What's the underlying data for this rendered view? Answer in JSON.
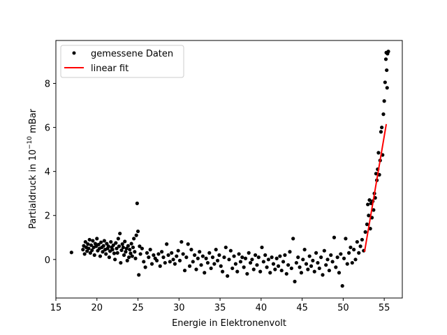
{
  "chart_data": {
    "type": "scatter",
    "title": "",
    "xlabel": "Energie in Elektronenvolt",
    "ylabel_prefix": "Partialdruck in 10",
    "ylabel_exponent": "−10",
    "ylabel_suffix": " mBar",
    "xlim": [
      15,
      57.2
    ],
    "ylim": [
      -1.75,
      9.95
    ],
    "x_ticks": [
      15,
      20,
      25,
      30,
      35,
      40,
      45,
      50,
      55
    ],
    "y_ticks": [
      0,
      2,
      4,
      6,
      8
    ],
    "grid": false,
    "legend_position": "top-left",
    "series": [
      {
        "name": "gemessene Daten",
        "kind": "scatter",
        "color": "#000000",
        "points": [
          [
            16.9,
            0.32
          ],
          [
            18.3,
            0.45
          ],
          [
            18.4,
            0.62
          ],
          [
            18.5,
            0.25
          ],
          [
            18.6,
            0.8
          ],
          [
            18.7,
            0.55
          ],
          [
            18.8,
            0.38
          ],
          [
            18.9,
            0.7
          ],
          [
            19.0,
            0.5
          ],
          [
            19.1,
            0.9
          ],
          [
            19.2,
            0.3
          ],
          [
            19.3,
            0.65
          ],
          [
            19.4,
            0.42
          ],
          [
            19.5,
            0.85
          ],
          [
            19.6,
            0.55
          ],
          [
            19.7,
            0.2
          ],
          [
            19.8,
            0.72
          ],
          [
            19.9,
            0.6
          ],
          [
            20.0,
            0.95
          ],
          [
            20.1,
            0.4
          ],
          [
            20.2,
            0.68
          ],
          [
            20.3,
            0.5
          ],
          [
            20.4,
            0.15
          ],
          [
            20.5,
            0.78
          ],
          [
            20.6,
            0.55
          ],
          [
            20.7,
            0.35
          ],
          [
            20.8,
            0.62
          ],
          [
            20.9,
            0.85
          ],
          [
            21.0,
            0.45
          ],
          [
            21.1,
            0.25
          ],
          [
            21.2,
            0.72
          ],
          [
            21.3,
            0.5
          ],
          [
            21.4,
            0.6
          ],
          [
            21.5,
            0.1
          ],
          [
            21.6,
            0.38
          ],
          [
            21.7,
            0.8
          ],
          [
            21.8,
            0.55
          ],
          [
            21.9,
            0.45
          ],
          [
            22.0,
            0.65
          ],
          [
            22.1,
            0.28
          ],
          [
            22.2,
            0.0
          ],
          [
            22.3,
            0.75
          ],
          [
            22.4,
            0.5
          ],
          [
            22.5,
            0.3
          ],
          [
            22.6,
            0.95
          ],
          [
            22.7,
            0.6
          ],
          [
            22.8,
            1.18
          ],
          [
            22.9,
            -0.15
          ],
          [
            23.0,
            0.42
          ],
          [
            23.1,
            0.7
          ],
          [
            23.2,
            0.55
          ],
          [
            23.3,
            0.2
          ],
          [
            23.4,
            0.82
          ],
          [
            23.5,
            0.35
          ],
          [
            23.6,
            0.5
          ],
          [
            23.7,
            -0.05
          ],
          [
            23.8,
            0.62
          ],
          [
            23.9,
            0.1
          ],
          [
            24.0,
            0.45
          ],
          [
            24.1,
            0.28
          ],
          [
            24.2,
            0.72
          ],
          [
            24.3,
            0.15
          ],
          [
            24.4,
            0.55
          ],
          [
            24.5,
            0.95
          ],
          [
            24.6,
            0.35
          ],
          [
            24.7,
            0.05
          ],
          [
            24.8,
            1.1
          ],
          [
            24.9,
            2.55
          ],
          [
            25.0,
            1.28
          ],
          [
            25.1,
            -0.7
          ],
          [
            25.2,
            0.6
          ],
          [
            25.3,
            0.25
          ],
          [
            25.5,
            0.5
          ],
          [
            25.7,
            -0.1
          ],
          [
            25.9,
            -0.35
          ],
          [
            26.1,
            0.3
          ],
          [
            26.3,
            0.1
          ],
          [
            26.5,
            0.45
          ],
          [
            26.7,
            -0.2
          ],
          [
            26.9,
            0.2
          ],
          [
            27.1,
            0.05
          ],
          [
            27.3,
            -0.05
          ],
          [
            27.5,
            0.25
          ],
          [
            27.7,
            -0.3
          ],
          [
            27.9,
            0.35
          ],
          [
            28.1,
            0.1
          ],
          [
            28.3,
            -0.15
          ],
          [
            28.5,
            0.7
          ],
          [
            28.7,
            0.2
          ],
          [
            28.9,
            -0.1
          ],
          [
            29.1,
            0.3
          ],
          [
            29.3,
            0.0
          ],
          [
            29.5,
            -0.2
          ],
          [
            29.7,
            0.15
          ],
          [
            29.9,
            0.4
          ],
          [
            30.1,
            -0.05
          ],
          [
            30.3,
            0.8
          ],
          [
            30.5,
            0.25
          ],
          [
            30.7,
            -0.5
          ],
          [
            30.9,
            0.1
          ],
          [
            31.1,
            0.7
          ],
          [
            31.3,
            -0.3
          ],
          [
            31.5,
            0.45
          ],
          [
            31.7,
            -0.1
          ],
          [
            31.9,
            0.2
          ],
          [
            32.1,
            -0.45
          ],
          [
            32.3,
            0.05
          ],
          [
            32.5,
            0.35
          ],
          [
            32.7,
            -0.25
          ],
          [
            32.9,
            0.15
          ],
          [
            33.1,
            -0.6
          ],
          [
            33.3,
            0.05
          ],
          [
            33.5,
            -0.15
          ],
          [
            33.7,
            0.3
          ],
          [
            33.9,
            -0.4
          ],
          [
            34.1,
            0.1
          ],
          [
            34.3,
            -0.2
          ],
          [
            34.5,
            0.45
          ],
          [
            34.7,
            -0.05
          ],
          [
            34.9,
            0.2
          ],
          [
            35.1,
            -0.3
          ],
          [
            35.3,
            -0.55
          ],
          [
            35.5,
            0.1
          ],
          [
            35.7,
            0.55
          ],
          [
            35.9,
            -0.75
          ],
          [
            36.1,
            0.0
          ],
          [
            36.3,
            0.4
          ],
          [
            36.5,
            -0.4
          ],
          [
            36.7,
            0.15
          ],
          [
            36.9,
            -0.2
          ],
          [
            37.1,
            -0.55
          ],
          [
            37.3,
            0.25
          ],
          [
            37.5,
            -0.1
          ],
          [
            37.7,
            0.1
          ],
          [
            37.9,
            -0.35
          ],
          [
            38.1,
            0.05
          ],
          [
            38.3,
            -0.65
          ],
          [
            38.5,
            0.3
          ],
          [
            38.7,
            -0.15
          ],
          [
            38.9,
            0.0
          ],
          [
            39.1,
            -0.45
          ],
          [
            39.3,
            0.2
          ],
          [
            39.5,
            -0.25
          ],
          [
            39.7,
            0.1
          ],
          [
            39.9,
            -0.55
          ],
          [
            40.1,
            0.55
          ],
          [
            40.3,
            -0.1
          ],
          [
            40.5,
            0.2
          ],
          [
            40.7,
            -0.35
          ],
          [
            40.9,
            0.0
          ],
          [
            41.1,
            -0.6
          ],
          [
            41.3,
            0.1
          ],
          [
            41.5,
            -0.2
          ],
          [
            41.7,
            -0.45
          ],
          [
            41.9,
            0.05
          ],
          [
            42.1,
            -0.3
          ],
          [
            42.3,
            0.15
          ],
          [
            42.5,
            -0.5
          ],
          [
            42.7,
            -0.1
          ],
          [
            42.9,
            0.2
          ],
          [
            43.1,
            -0.65
          ],
          [
            43.3,
            -0.25
          ],
          [
            43.5,
            0.35
          ],
          [
            43.7,
            -0.4
          ],
          [
            43.9,
            0.95
          ],
          [
            44.1,
            -1.0
          ],
          [
            44.3,
            -0.15
          ],
          [
            44.5,
            0.1
          ],
          [
            44.7,
            -0.35
          ],
          [
            44.9,
            -0.6
          ],
          [
            45.1,
            0.0
          ],
          [
            45.3,
            0.45
          ],
          [
            45.5,
            -0.2
          ],
          [
            45.7,
            -0.45
          ],
          [
            45.9,
            0.15
          ],
          [
            46.1,
            -0.3
          ],
          [
            46.3,
            -0.05
          ],
          [
            46.5,
            -0.55
          ],
          [
            46.7,
            0.3
          ],
          [
            46.9,
            -0.15
          ],
          [
            47.1,
            -0.4
          ],
          [
            47.3,
            0.1
          ],
          [
            47.5,
            -0.7
          ],
          [
            47.7,
            0.4
          ],
          [
            47.9,
            -0.25
          ],
          [
            48.1,
            0.0
          ],
          [
            48.3,
            -0.5
          ],
          [
            48.5,
            0.2
          ],
          [
            48.7,
            -0.1
          ],
          [
            48.9,
            1.0
          ],
          [
            49.1,
            -0.35
          ],
          [
            49.3,
            0.1
          ],
          [
            49.5,
            -0.6
          ],
          [
            49.7,
            0.25
          ],
          [
            49.9,
            -1.2
          ],
          [
            50.1,
            0.05
          ],
          [
            50.3,
            0.95
          ],
          [
            50.5,
            -0.2
          ],
          [
            50.7,
            0.3
          ],
          [
            50.9,
            0.55
          ],
          [
            51.1,
            -0.15
          ],
          [
            51.3,
            0.45
          ],
          [
            51.5,
            0.0
          ],
          [
            51.7,
            0.8
          ],
          [
            51.9,
            0.3
          ],
          [
            52.1,
            0.6
          ],
          [
            52.3,
            0.9
          ],
          [
            52.5,
            0.4
          ],
          [
            52.7,
            1.25
          ],
          [
            52.9,
            1.6
          ],
          [
            53.0,
            2.5
          ],
          [
            53.1,
            2.0
          ],
          [
            53.2,
            2.7
          ],
          [
            53.3,
            1.4
          ],
          [
            53.4,
            2.55
          ],
          [
            53.5,
            1.9
          ],
          [
            53.6,
            2.65
          ],
          [
            53.7,
            2.25
          ],
          [
            53.8,
            3.0
          ],
          [
            53.9,
            2.8
          ],
          [
            54.0,
            3.9
          ],
          [
            54.1,
            3.6
          ],
          [
            54.2,
            4.1
          ],
          [
            54.3,
            4.85
          ],
          [
            54.4,
            3.85
          ],
          [
            54.5,
            4.5
          ],
          [
            54.6,
            5.8
          ],
          [
            54.7,
            6.0
          ],
          [
            54.8,
            4.75
          ],
          [
            54.9,
            6.6
          ],
          [
            55.0,
            7.2
          ],
          [
            55.1,
            8.05
          ],
          [
            55.2,
            9.1
          ],
          [
            55.25,
            9.4
          ],
          [
            55.3,
            8.6
          ],
          [
            55.35,
            7.8
          ],
          [
            55.4,
            9.35
          ],
          [
            55.5,
            9.45
          ]
        ]
      },
      {
        "name": "linear fit",
        "kind": "line",
        "color": "#ff0000",
        "x": [
          52.6,
          55.25
        ],
        "y": [
          0.35,
          6.15
        ]
      }
    ]
  }
}
